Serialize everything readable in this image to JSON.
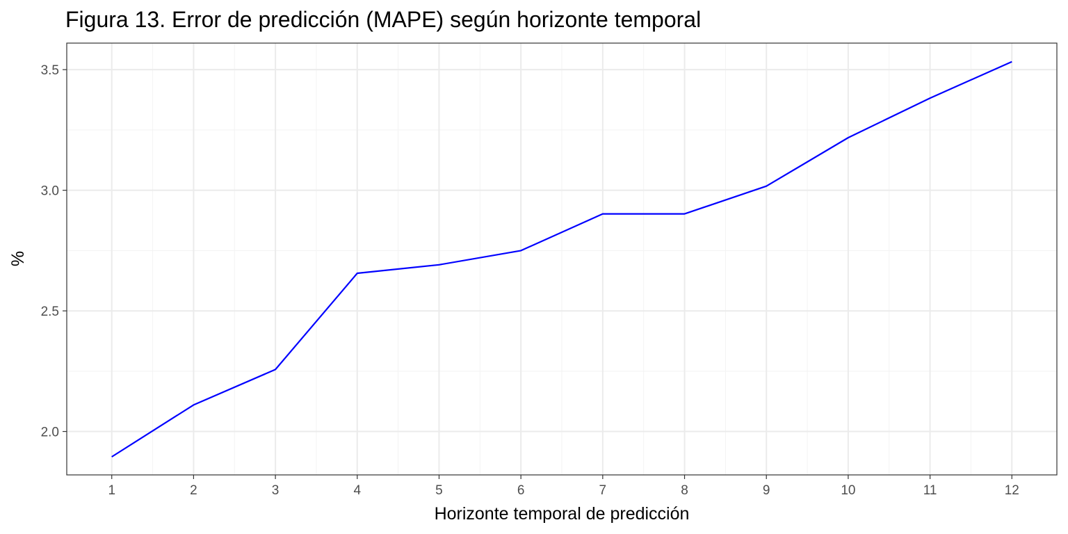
{
  "chart_data": {
    "type": "line",
    "title": "Figura 13. Error de predicción (MAPE) según horizonte temporal",
    "xlabel": "Horizonte temporal de predicción",
    "ylabel": "%",
    "x": [
      1,
      2,
      3,
      4,
      5,
      6,
      7,
      8,
      9,
      10,
      11,
      12
    ],
    "series": [
      {
        "values": [
          1.895,
          2.11,
          2.257,
          2.656,
          2.691,
          2.75,
          2.902,
          2.902,
          3.017,
          3.218,
          3.382,
          3.533
        ]
      }
    ],
    "xticks": [
      "1",
      "2",
      "3",
      "4",
      "5",
      "6",
      "7",
      "8",
      "9",
      "10",
      "11",
      "12"
    ],
    "yticks": [
      "2.0",
      "2.5",
      "3.0",
      "3.5"
    ],
    "xlim": [
      0.45,
      12.55
    ],
    "ylim": [
      1.82,
      3.61
    ],
    "grid": true,
    "legend": "none",
    "colors": {
      "line": "#0000ff",
      "grid_major": "#ebebeb",
      "grid_minor": "#f3f3f3",
      "panel_border": "#333333"
    }
  }
}
